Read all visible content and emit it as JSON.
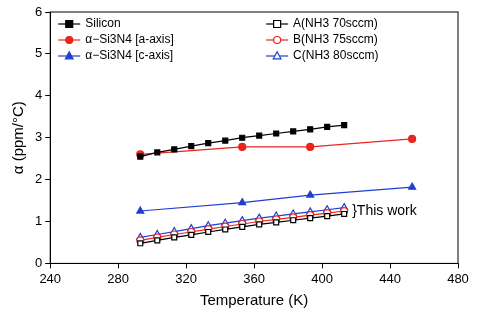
{
  "chart_data": {
    "type": "scatter",
    "x_label": "Temperature (K)",
    "y_label": "α (ppm/°C)",
    "xlim": [
      240,
      480
    ],
    "xticks": [
      240,
      280,
      320,
      360,
      400,
      440,
      480
    ],
    "ylim": [
      0,
      6
    ],
    "yticks": [
      0,
      1,
      2,
      3,
      4,
      5,
      6
    ],
    "grid": false,
    "legend": "upper left",
    "annotations": [
      {
        "text": "}This work"
      }
    ],
    "series": [
      {
        "name": "Silicon",
        "color": "#000000",
        "marker": "square",
        "line_style": "solid",
        "x": [
          293,
          303,
          313,
          323,
          333,
          343,
          353,
          363,
          373,
          383,
          393,
          403,
          413
        ],
        "values": [
          2.55,
          2.65,
          2.72,
          2.8,
          2.87,
          2.93,
          3.0,
          3.05,
          3.1,
          3.15,
          3.2,
          3.26,
          3.3
        ]
      },
      {
        "name": "α−Si3N4 [a-axis]",
        "color": "#e8251f",
        "marker": "circle",
        "line_style": "solid",
        "x": [
          293,
          353,
          393,
          453
        ],
        "values": [
          2.6,
          2.78,
          2.78,
          2.97
        ]
      },
      {
        "name": "α−Si3N4 [c-axis]",
        "color": "#1f3fd1",
        "marker": "triangle",
        "line_style": "solid",
        "x": [
          293,
          353,
          393,
          453
        ],
        "values": [
          1.25,
          1.45,
          1.63,
          1.82
        ]
      },
      {
        "name": "A(NH3 70sccm)",
        "color": "#000000",
        "marker": "open_square",
        "line_style": "solid",
        "x": [
          293,
          303,
          313,
          323,
          333,
          343,
          353,
          363,
          373,
          383,
          393,
          403,
          413
        ],
        "values": [
          0.48,
          0.55,
          0.62,
          0.68,
          0.75,
          0.81,
          0.87,
          0.93,
          0.98,
          1.03,
          1.08,
          1.13,
          1.18
        ]
      },
      {
        "name": "B(NH3 75sccm)",
        "color": "#e8251f",
        "marker": "open_circle",
        "line_style": "solid",
        "x": [
          293,
          303,
          313,
          323,
          333,
          343,
          353,
          363,
          373,
          383,
          393,
          403,
          413
        ],
        "values": [
          0.55,
          0.62,
          0.69,
          0.75,
          0.82,
          0.88,
          0.94,
          1.0,
          1.05,
          1.1,
          1.15,
          1.2,
          1.25
        ]
      },
      {
        "name": "C(NH3 80sccm)",
        "color": "#1f3fd1",
        "marker": "open_triangle",
        "line_style": "solid",
        "x": [
          293,
          303,
          313,
          323,
          333,
          343,
          353,
          363,
          373,
          383,
          393,
          403,
          413
        ],
        "values": [
          0.62,
          0.69,
          0.76,
          0.83,
          0.9,
          0.96,
          1.02,
          1.08,
          1.13,
          1.18,
          1.23,
          1.28,
          1.33
        ]
      }
    ]
  }
}
